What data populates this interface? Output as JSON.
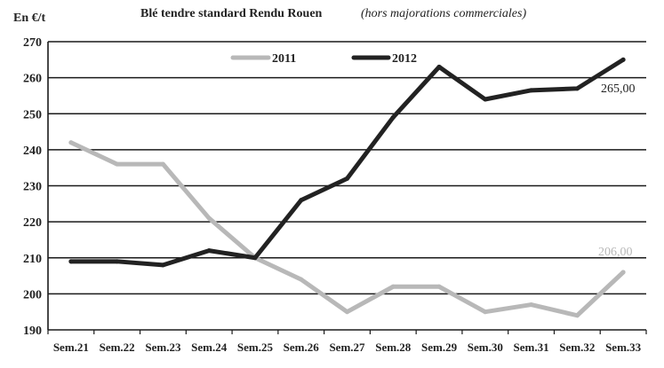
{
  "chart_data": {
    "type": "line",
    "title": "Blé tendre standard Rendu Rouen",
    "subtitle": "(hors majorations commerciales)",
    "ylabel": "En €/t",
    "xlabel": "",
    "categories": [
      "Sem.21",
      "Sem.22",
      "Sem.23",
      "Sem.24",
      "Sem.25",
      "Sem.26",
      "Sem.27",
      "Sem.28",
      "Sem.29",
      "Sem.30",
      "Sem.31",
      "Sem.32",
      "Sem.33"
    ],
    "ylim": [
      190,
      270
    ],
    "yticks": [
      "190",
      "200",
      "210",
      "220",
      "230",
      "240",
      "250",
      "260",
      "270"
    ],
    "grid": "horizontal",
    "legend_position": "top",
    "series": [
      {
        "name": "2011",
        "color": "#b8b8b8",
        "values": [
          242,
          236,
          236,
          221,
          210,
          204,
          195,
          202,
          202,
          195,
          197,
          194,
          206
        ]
      },
      {
        "name": "2012",
        "color": "#222222",
        "values": [
          209,
          209,
          208,
          212,
          210,
          226,
          232,
          249,
          263,
          254,
          256.5,
          257,
          265
        ]
      }
    ],
    "annotations": [
      {
        "text": "265,00",
        "series": "2012",
        "color": "#222222"
      },
      {
        "text": "206,00",
        "series": "2011",
        "color": "#b8b8b8"
      }
    ]
  }
}
